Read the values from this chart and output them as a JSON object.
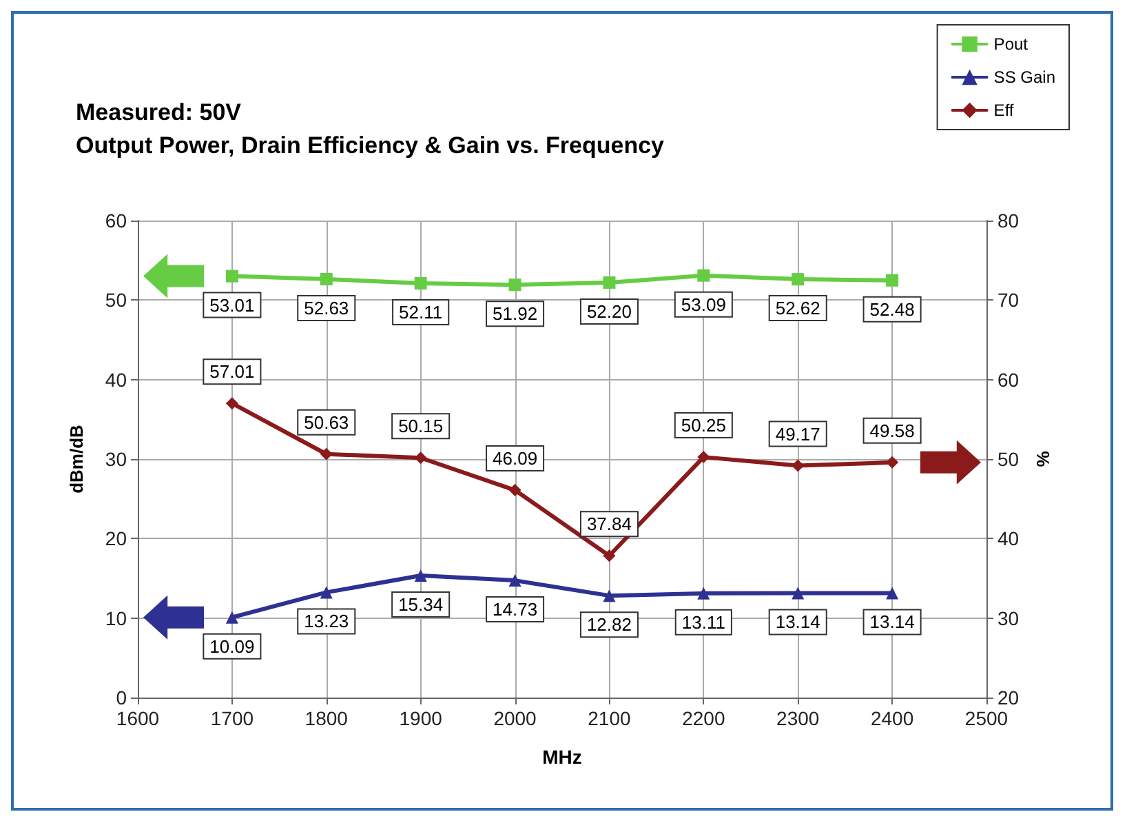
{
  "chart_data": {
    "type": "line",
    "title": "Measured: 50V",
    "subtitle": "Output Power, Drain Efficiency & Gain vs. Frequency",
    "xlabel": "MHz",
    "ylabel": "dBm/dB",
    "y2label": "%",
    "x": [
      1700,
      1800,
      1900,
      2000,
      2100,
      2200,
      2300,
      2400
    ],
    "series": [
      {
        "name": "Pout",
        "color": "#66cc44",
        "marker": "square",
        "values": [
          53.01,
          52.63,
          52.11,
          51.92,
          52.2,
          53.09,
          52.62,
          52.48
        ],
        "value_labels": [
          "53.01",
          "52.63",
          "52.11",
          "51.92",
          "52.20",
          "53.09",
          "52.62",
          "52.48"
        ]
      },
      {
        "name": "SS Gain",
        "color": "#2e3192",
        "marker": "triangle",
        "values": [
          10.09,
          13.23,
          15.34,
          14.73,
          12.82,
          13.11,
          13.14,
          13.14
        ],
        "value_labels": [
          "10.09",
          "13.23",
          "15.34",
          "14.73",
          "12.82",
          "13.11",
          "13.14",
          "13.14"
        ]
      },
      {
        "name": "Eff",
        "color": "#8b1a1a",
        "marker": "diamond",
        "axis": "y2",
        "values": [
          57.01,
          50.63,
          50.15,
          46.09,
          37.84,
          50.25,
          49.17,
          49.58
        ],
        "value_labels": [
          "57.01",
          "50.63",
          "50.15",
          "46.09",
          "37.84",
          "50.25",
          "49.17",
          "49.58"
        ]
      }
    ],
    "xlim": [
      1600,
      2500
    ],
    "xticks": [
      1600,
      1700,
      1800,
      1900,
      2000,
      2100,
      2200,
      2300,
      2400,
      2500
    ],
    "ylim": [
      0,
      60
    ],
    "yticks": [
      0,
      10,
      20,
      30,
      40,
      50,
      60
    ],
    "y2lim": [
      20,
      80
    ],
    "y2ticks": [
      20,
      30,
      40,
      50,
      60,
      70,
      80
    ],
    "grid": true,
    "legend": "top right"
  }
}
